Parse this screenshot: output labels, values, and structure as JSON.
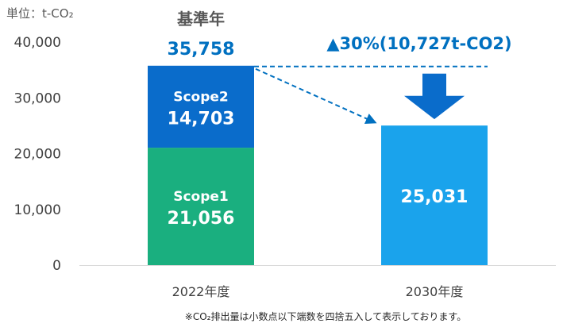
{
  "chart_data": {
    "type": "bar",
    "stacked": true,
    "unit_label": "単位：t-CO₂",
    "categories": [
      "2022年度",
      "2030年度"
    ],
    "series": [
      {
        "name": "Scope1",
        "values": [
          21056,
          null
        ],
        "color": "#1AAF7F"
      },
      {
        "name": "Scope2",
        "values": [
          14703,
          null
        ],
        "color": "#0A6CCB"
      },
      {
        "name": "",
        "values": [
          null,
          25031
        ],
        "color": "#1AA3EC"
      }
    ],
    "segment_labels": {
      "scope1_name": "Scope1",
      "scope1_value": "21,056",
      "scope2_name": "Scope2",
      "scope2_value": "14,703",
      "target_value": "25,031"
    },
    "base_year_label": "基準年",
    "base_total": 35758,
    "base_total_label": "35,758",
    "reduction_label": "▲30%(10,727t-CO2)",
    "ylim": [
      0,
      40000
    ],
    "yticks": [
      0,
      10000,
      20000,
      30000,
      40000
    ],
    "ytick_labels": [
      "0",
      "10,000",
      "20,000",
      "30,000",
      "40,000"
    ],
    "grid": false,
    "footnote": "※CO₂排出量は小数点以下端数を四捨五入して表示しております。"
  }
}
